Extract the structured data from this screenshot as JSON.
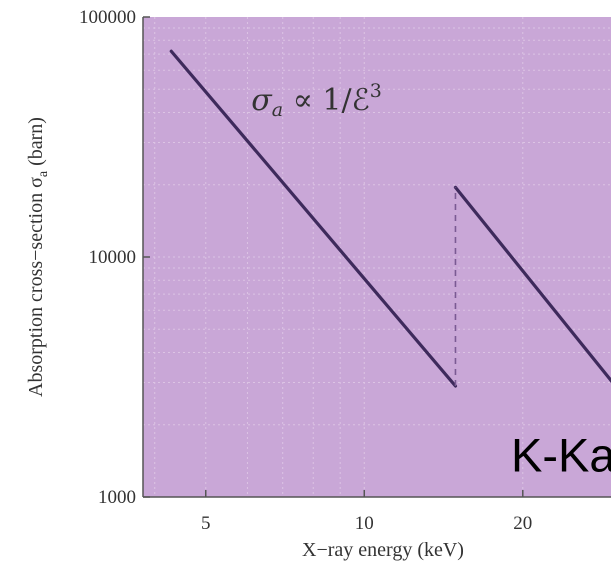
{
  "colors": {
    "plot_background": "#c9a7d7",
    "line": "#3e2a5c",
    "grid": "#dcc4e4",
    "axis": "#555555"
  },
  "chart_data": {
    "type": "line",
    "title": "",
    "xlabel": "X−ray energy (keV)",
    "ylabel": "Absorption cross−section σ",
    "ylabel_subscript": "a",
    "ylabel_unit": " (barn)",
    "x_scale": "log",
    "y_scale": "log",
    "xlim": [
      3.8,
      31
    ],
    "ylim": [
      1000,
      100000
    ],
    "x_ticks": [
      5,
      10,
      20
    ],
    "x_tick_labels": [
      "5",
      "10",
      "20"
    ],
    "y_ticks": [
      1000,
      10000,
      100000
    ],
    "y_tick_labels": [
      "1000",
      "10000",
      "100000"
    ],
    "grid": true,
    "series": [
      {
        "segment": "below-edge",
        "x": [
          4.3,
          14.9
        ],
        "y": [
          72000,
          2900
        ]
      },
      {
        "segment": "above-edge",
        "x": [
          14.9,
          30.0
        ],
        "y": [
          19500,
          2900
        ]
      }
    ],
    "edge": {
      "x": 14.9,
      "y_from": 2900,
      "y_to": 19500,
      "style": "dashed"
    },
    "annotations": [
      {
        "id": "formula",
        "text_main": "σ",
        "text_sub": "a",
        "text_rest": " ∝ 1/ℰ",
        "text_sup": "3",
        "x": 6.1,
        "y": 45000
      },
      {
        "id": "kante",
        "text": "K-Kante",
        "x": 19.0,
        "y": 1500
      }
    ]
  }
}
